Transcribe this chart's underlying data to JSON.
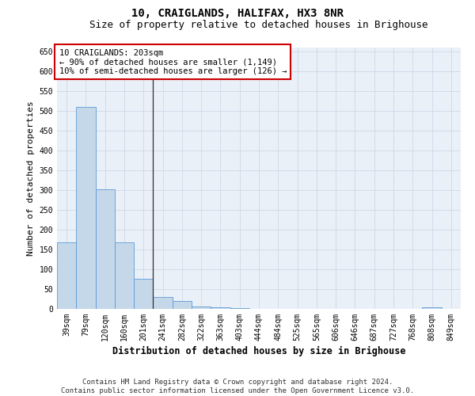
{
  "title": "10, CRAIGLANDS, HALIFAX, HX3 8NR",
  "subtitle": "Size of property relative to detached houses in Brighouse",
  "xlabel": "Distribution of detached houses by size in Brighouse",
  "ylabel": "Number of detached properties",
  "bar_values": [
    168,
    510,
    302,
    168,
    76,
    31,
    20,
    7,
    5,
    2,
    0,
    0,
    0,
    0,
    0,
    0,
    0,
    0,
    0,
    5,
    0
  ],
  "bar_labels": [
    "39sqm",
    "79sqm",
    "120sqm",
    "160sqm",
    "201sqm",
    "241sqm",
    "282sqm",
    "322sqm",
    "363sqm",
    "403sqm",
    "444sqm",
    "484sqm",
    "525sqm",
    "565sqm",
    "606sqm",
    "646sqm",
    "687sqm",
    "727sqm",
    "768sqm",
    "808sqm",
    "849sqm"
  ],
  "bar_color": "#c5d8ea",
  "bar_edge_color": "#5b9bd5",
  "vline_x": 4.5,
  "vline_color": "#2f2f2f",
  "annotation_box_text": "10 CRAIGLANDS: 203sqm\n← 90% of detached houses are smaller (1,149)\n10% of semi-detached houses are larger (126) →",
  "annotation_box_color": "#ffffff",
  "annotation_box_edge_color": "#cc0000",
  "ylim": [
    0,
    660
  ],
  "yticks": [
    0,
    50,
    100,
    150,
    200,
    250,
    300,
    350,
    400,
    450,
    500,
    550,
    600,
    650
  ],
  "grid_color": "#d0d8e8",
  "background_color": "#eaf0f8",
  "footer_text": "Contains HM Land Registry data © Crown copyright and database right 2024.\nContains public sector information licensed under the Open Government Licence v3.0.",
  "title_fontsize": 10,
  "subtitle_fontsize": 9,
  "xlabel_fontsize": 8.5,
  "ylabel_fontsize": 8,
  "tick_fontsize": 7,
  "annotation_fontsize": 7.5,
  "footer_fontsize": 6.5
}
